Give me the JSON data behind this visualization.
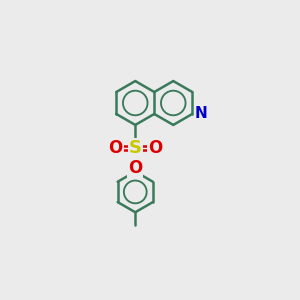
{
  "background_color": "#ebebeb",
  "bond_color": "#3a7a5a",
  "N_color": "#0000cc",
  "S_color": "#c8c800",
  "O_color": "#dd0000",
  "bond_width": 1.8,
  "figsize": [
    3.0,
    3.0
  ],
  "dpi": 100,
  "xlim": [
    0,
    10
  ],
  "ylim": [
    0,
    10
  ]
}
